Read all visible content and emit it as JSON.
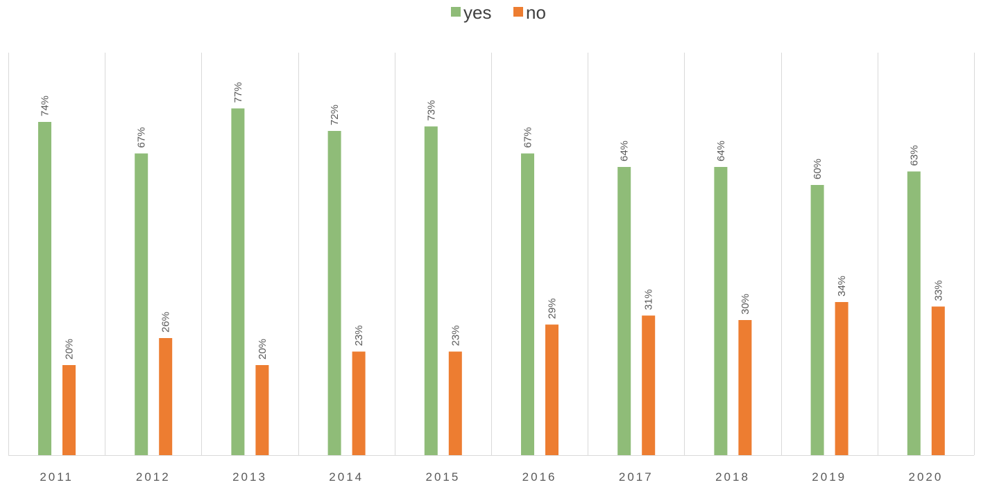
{
  "chart_data": {
    "type": "bar",
    "title": "",
    "xlabel": "",
    "ylabel": "",
    "categories": [
      "2011",
      "2012",
      "2013",
      "2014",
      "2015",
      "2016",
      "2017",
      "2018",
      "2019",
      "2020"
    ],
    "series": [
      {
        "name": "yes",
        "color": "#8fbc78",
        "values": [
          74,
          67,
          77,
          72,
          73,
          67,
          64,
          64,
          60,
          63
        ],
        "labels": [
          "74%",
          "67%",
          "77%",
          "72%",
          "73%",
          "67%",
          "64%",
          "64%",
          "60%",
          "63%"
        ]
      },
      {
        "name": "no",
        "color": "#ed7d31",
        "values": [
          20,
          26,
          20,
          23,
          23,
          29,
          31,
          30,
          34,
          33
        ],
        "labels": [
          "20%",
          "26%",
          "20%",
          "23%",
          "23%",
          "29%",
          "31%",
          "30%",
          "34%",
          "33%"
        ]
      }
    ],
    "ylim": [
      0,
      100
    ],
    "value_unit": "%",
    "grid": "vertical category separators",
    "legend_position": "top-center",
    "data_label_orientation": "rotated vertical"
  }
}
